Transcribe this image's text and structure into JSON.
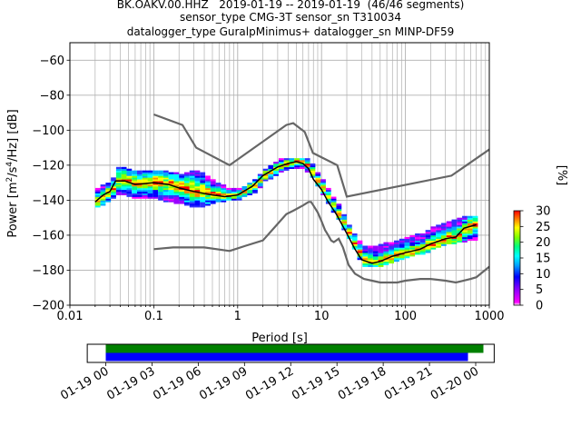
{
  "title_lines": [
    "BK.OAKV.00.HHZ   2019-01-19 -- 2019-01-19  (46/46 segments)",
    "sensor_type CMG-3T sensor_sn T310034",
    "datalogger_type GuralpMinimus+ datalogger_sn MINP-DF59"
  ],
  "chart_data": [
    {
      "type": "heatmap",
      "xlabel": "Period [s]",
      "ylabel": "Power [m²/s⁴/Hz] [dB]",
      "x_scale": "log",
      "xlim": [
        0.01,
        1000
      ],
      "ylim": [
        -200,
        -50
      ],
      "xticks": [
        0.01,
        0.1,
        1,
        10,
        100,
        1000
      ],
      "xtick_labels": [
        "0.01",
        "0.1",
        "1",
        "10",
        "100",
        "1000"
      ],
      "yticks": [
        -200,
        -180,
        -160,
        -140,
        -120,
        -100,
        -80,
        -60
      ],
      "ytick_labels": [
        "−200",
        "−180",
        "−160",
        "−140",
        "−120",
        "−100",
        "−80",
        "−60"
      ],
      "grid": true,
      "colorbar": {
        "label": "[%]",
        "range": [
          0,
          30
        ],
        "ticks": [
          0,
          5,
          10,
          15,
          20,
          25,
          30
        ],
        "tick_labels": [
          "0",
          "5",
          "10",
          "15",
          "20",
          "25",
          "30"
        ]
      },
      "model_curves": [
        {
          "role": "upper",
          "color": "#666666",
          "points": [
            [
              0.1,
              -91
            ],
            [
              0.22,
              -97
            ],
            [
              0.32,
              -110
            ],
            [
              0.8,
              -120
            ],
            [
              3.8,
              -97
            ],
            [
              4.6,
              -96
            ],
            [
              6.3,
              -101
            ],
            [
              7.9,
              -113
            ],
            [
              15.4,
              -120
            ],
            [
              20,
              -138
            ],
            [
              354,
              -126
            ],
            [
              1000,
              -111
            ]
          ]
        },
        {
          "role": "lower",
          "color": "#666666",
          "points": [
            [
              0.1,
              -168
            ],
            [
              0.17,
              -167
            ],
            [
              0.4,
              -167
            ],
            [
              0.8,
              -169
            ],
            [
              1.25,
              -166
            ],
            [
              2,
              -163
            ],
            [
              3.8,
              -148
            ],
            [
              4.6,
              -146
            ],
            [
              6,
              -143
            ],
            [
              7,
              -141
            ],
            [
              7.5,
              -141
            ],
            [
              8,
              -143
            ],
            [
              9,
              -147
            ],
            [
              10,
              -152
            ],
            [
              11,
              -157
            ],
            [
              12,
              -160
            ],
            [
              13,
              -163
            ],
            [
              14,
              -164
            ],
            [
              16,
              -162
            ],
            [
              18,
              -167
            ],
            [
              21,
              -177
            ],
            [
              25,
              -182
            ],
            [
              32,
              -185
            ],
            [
              40,
              -186
            ],
            [
              50,
              -187
            ],
            [
              80,
              -187
            ],
            [
              100,
              -186
            ],
            [
              150,
              -185
            ],
            [
              200,
              -185
            ],
            [
              300,
              -186
            ],
            [
              400,
              -187
            ],
            [
              600,
              -185
            ],
            [
              700,
              -184
            ],
            [
              1000,
              -178
            ]
          ]
        }
      ],
      "median_curve": {
        "color": "#000000",
        "points": [
          [
            0.02,
            -141
          ],
          [
            0.025,
            -137
          ],
          [
            0.03,
            -135
          ],
          [
            0.035,
            -129
          ],
          [
            0.045,
            -129
          ],
          [
            0.06,
            -131
          ],
          [
            0.1,
            -130
          ],
          [
            0.15,
            -131
          ],
          [
            0.2,
            -133
          ],
          [
            0.3,
            -135
          ],
          [
            0.5,
            -137
          ],
          [
            0.7,
            -138
          ],
          [
            1,
            -137
          ],
          [
            1.5,
            -132
          ],
          [
            2,
            -126
          ],
          [
            3,
            -121
          ],
          [
            4,
            -119
          ],
          [
            5,
            -118
          ],
          [
            6,
            -119
          ],
          [
            7,
            -122
          ],
          [
            8,
            -128
          ],
          [
            10,
            -134
          ],
          [
            12,
            -141
          ],
          [
            15,
            -148
          ],
          [
            20,
            -159
          ],
          [
            25,
            -168
          ],
          [
            30,
            -174
          ],
          [
            40,
            -176
          ],
          [
            50,
            -175
          ],
          [
            70,
            -172
          ],
          [
            100,
            -170
          ],
          [
            150,
            -168
          ],
          [
            200,
            -165
          ],
          [
            300,
            -162
          ],
          [
            400,
            -161
          ],
          [
            500,
            -156
          ],
          [
            700,
            -154
          ]
        ]
      },
      "ppsd_spread": [
        {
          "x": 0.02,
          "min": -144,
          "max": -134
        },
        {
          "x": 0.03,
          "min": -139,
          "max": -130
        },
        {
          "x": 0.035,
          "min": -136,
          "max": -122
        },
        {
          "x": 0.05,
          "min": -138,
          "max": -124
        },
        {
          "x": 0.1,
          "min": -139,
          "max": -124
        },
        {
          "x": 0.2,
          "min": -142,
          "max": -126
        },
        {
          "x": 0.3,
          "min": -144,
          "max": -124
        },
        {
          "x": 0.5,
          "min": -141,
          "max": -130
        },
        {
          "x": 0.7,
          "min": -140,
          "max": -134
        },
        {
          "x": 1,
          "min": -139,
          "max": -135
        },
        {
          "x": 1.5,
          "min": -135,
          "max": -129
        },
        {
          "x": 2,
          "min": -129,
          "max": -123
        },
        {
          "x": 3,
          "min": -124,
          "max": -118
        },
        {
          "x": 4,
          "min": -122,
          "max": -117
        },
        {
          "x": 5,
          "min": -121,
          "max": -117
        },
        {
          "x": 6,
          "min": -122,
          "max": -117
        },
        {
          "x": 7,
          "min": -125,
          "max": -119
        },
        {
          "x": 8,
          "min": -130,
          "max": -124
        },
        {
          "x": 10,
          "min": -137,
          "max": -130
        },
        {
          "x": 12,
          "min": -144,
          "max": -137
        },
        {
          "x": 15,
          "min": -151,
          "max": -144
        },
        {
          "x": 20,
          "min": -162,
          "max": -155
        },
        {
          "x": 25,
          "min": -171,
          "max": -163
        },
        {
          "x": 30,
          "min": -177,
          "max": -167
        },
        {
          "x": 40,
          "min": -178,
          "max": -168
        },
        {
          "x": 50,
          "min": -177,
          "max": -166
        },
        {
          "x": 70,
          "min": -175,
          "max": -165
        },
        {
          "x": 100,
          "min": -172,
          "max": -162
        },
        {
          "x": 150,
          "min": -170,
          "max": -160
        },
        {
          "x": 200,
          "min": -168,
          "max": -156
        },
        {
          "x": 300,
          "min": -165,
          "max": -154
        },
        {
          "x": 400,
          "min": -164,
          "max": -152
        },
        {
          "x": 500,
          "min": -163,
          "max": -150
        },
        {
          "x": 700,
          "min": -162,
          "max": -150
        }
      ]
    },
    {
      "type": "timeline",
      "xlim": [
        "2019-01-19 00:00",
        "2019-01-20 00:00"
      ],
      "tick_hours": [
        0,
        3,
        6,
        9,
        12,
        15,
        18,
        21,
        24
      ],
      "tick_labels": [
        "01-19 00",
        "01-19 03",
        "01-19 06",
        "01-19 09",
        "01-19 12",
        "01-19 15",
        "01-19 18",
        "01-19 21",
        "01-20 00"
      ],
      "bars": [
        {
          "color": "#008000",
          "start_hour": 0.0,
          "end_hour": 24.5
        },
        {
          "color": "#0000ff",
          "start_hour": 0.0,
          "end_hour": 23.5
        }
      ],
      "frame_hours": [
        -1.2,
        25.2
      ]
    }
  ]
}
